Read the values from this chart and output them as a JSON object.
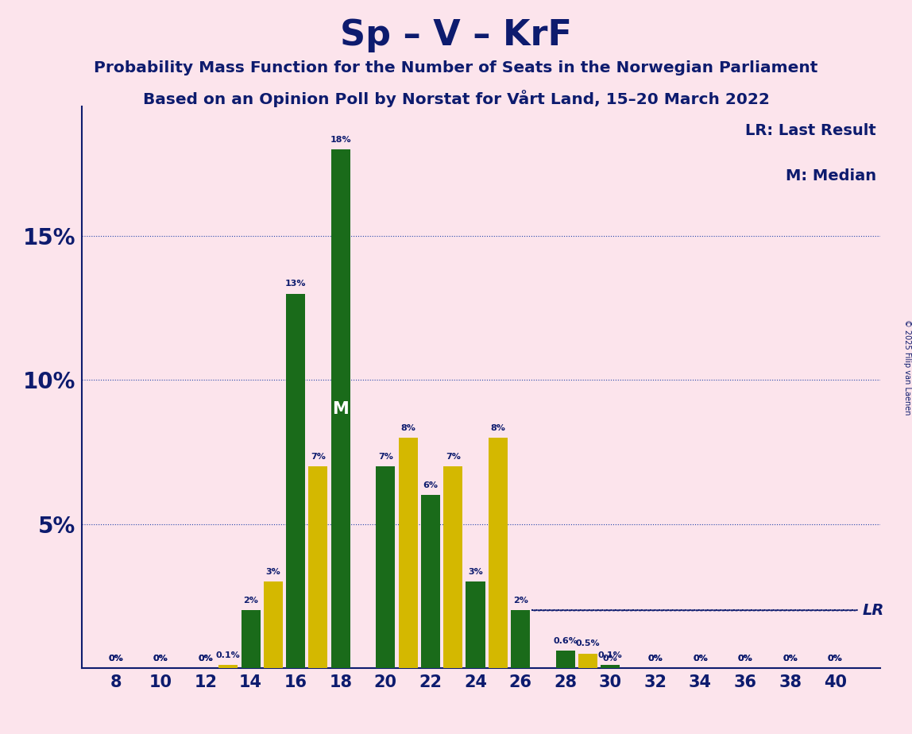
{
  "title": "Sp – V – KrF",
  "subtitle1": "Probability Mass Function for the Number of Seats in the Norwegian Parliament",
  "subtitle2": "Based on an Opinion Poll by Norstat for Vårt Land, 15–20 March 2022",
  "copyright": "© 2025 Filip van Laenen",
  "legend_lr": "LR: Last Result",
  "legend_m": "M: Median",
  "background_color": "#fce4ec",
  "green_color": "#1a6b1a",
  "yellow_color": "#d4b800",
  "text_color": "#0d1b6e",
  "grid_color": "#2244aa",
  "all_seats": [
    8,
    9,
    10,
    11,
    12,
    13,
    14,
    15,
    16,
    17,
    18,
    19,
    20,
    21,
    22,
    23,
    24,
    25,
    26,
    27,
    28,
    29,
    30,
    31,
    32,
    33,
    34,
    35,
    36,
    37,
    38,
    39,
    40
  ],
  "green_seats": [
    8,
    9,
    10,
    11,
    12,
    13,
    14,
    15,
    16,
    17,
    18,
    19,
    20,
    21,
    22,
    23,
    24,
    25,
    26,
    27,
    28,
    29,
    30,
    31,
    32,
    33,
    34,
    35,
    36,
    37,
    38,
    39,
    40
  ],
  "green_values": [
    0.0,
    0.0,
    0.0,
    0.0,
    0.0,
    0.0,
    2.0,
    0.0,
    13.0,
    0.0,
    18.0,
    0.0,
    7.0,
    0.0,
    6.0,
    0.0,
    3.0,
    0.0,
    2.0,
    0.0,
    0.6,
    0.0,
    0.1,
    0.0,
    0.0,
    0.0,
    0.0,
    0.0,
    0.0,
    0.0,
    0.0,
    0.0,
    0.0
  ],
  "yellow_values": [
    0.0,
    0.0,
    0.0,
    0.0,
    0.0,
    0.1,
    0.0,
    3.0,
    0.0,
    7.0,
    0.0,
    0.0,
    0.0,
    8.0,
    0.0,
    7.0,
    0.0,
    8.0,
    0.0,
    0.0,
    0.0,
    0.5,
    0.0,
    0.0,
    0.0,
    0.0,
    0.0,
    0.0,
    0.0,
    0.0,
    0.0,
    0.0,
    0.0
  ],
  "xtick_seats": [
    8,
    10,
    12,
    14,
    16,
    18,
    20,
    22,
    24,
    26,
    28,
    30,
    32,
    34,
    36,
    38,
    40
  ],
  "median_x": 18,
  "lr_y": 2.0,
  "lr_x_start": 26,
  "ylim": [
    0,
    19.5
  ],
  "yticks": [
    5,
    10,
    15
  ],
  "ytick_labels": [
    "5%",
    "10%",
    "15%"
  ]
}
